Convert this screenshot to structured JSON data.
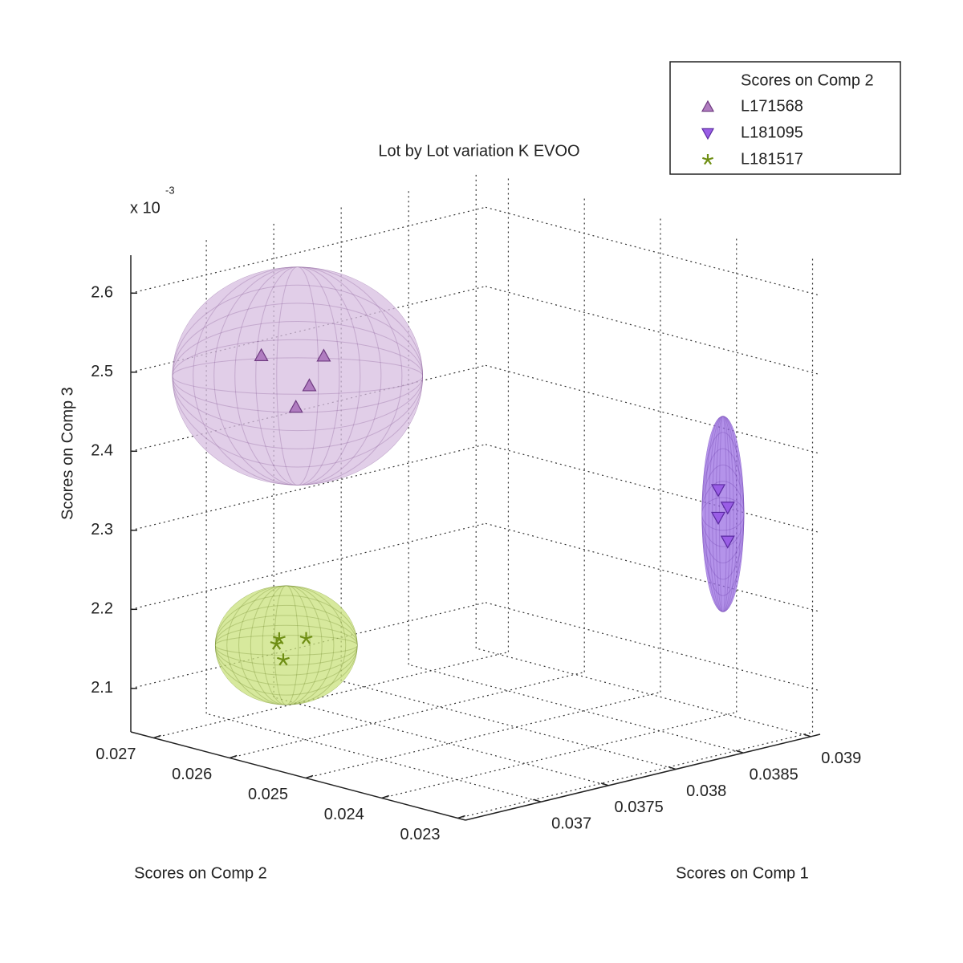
{
  "chart_data": {
    "type": "scatter3d",
    "title": "Lot by Lot variation K EVOO",
    "x_label": "Scores on Comp 1",
    "y_label": "Scores on Comp 2",
    "z_label": "Scores on Comp 3",
    "z_multiplier": {
      "base": "x 10",
      "exponent": "-3"
    },
    "xlim": [
      0.03644,
      0.03907
    ],
    "ylim": [
      0.0229,
      0.0273
    ],
    "zlim": [
      2.045,
      2.648
    ],
    "xticks": [
      0.037,
      0.0375,
      0.038,
      0.0385,
      0.039
    ],
    "yticks": [
      0.023,
      0.024,
      0.025,
      0.026,
      0.027
    ],
    "zticks": [
      2.1,
      2.2,
      2.3,
      2.4,
      2.5,
      2.6
    ],
    "grid": true,
    "legend": {
      "title": "Scores on Comp 2",
      "location": "northeast"
    },
    "series": [
      {
        "name": "L171568",
        "marker": "triangle-up",
        "color": "#b07cc0",
        "edge": "#6e3a80",
        "ellipsoid": "#d7bde0",
        "x": [
          0.0369,
          0.03725,
          0.0372,
          0.0371
        ],
        "y": [
          0.0264,
          0.0262,
          0.0263,
          0.0263
        ],
        "z": [
          2.525,
          2.515,
          2.477,
          2.454
        ]
      },
      {
        "name": "L181095",
        "marker": "triangle-down",
        "color": "#9a5ee6",
        "edge": "#5a2aa0",
        "ellipsoid": "#9b6fe3",
        "x": [
          0.03854,
          0.03861,
          0.03854,
          0.03861
        ],
        "y": [
          0.0233,
          0.0233,
          0.0233,
          0.0233
        ],
        "z": [
          2.366,
          2.341,
          2.331,
          2.298
        ]
      },
      {
        "name": "L181517",
        "marker": "star",
        "color": "#6f8f14",
        "edge": "#55700c",
        "ellipsoid": "#c9e27c",
        "x": [
          0.03692,
          0.0369,
          0.03712,
          0.03695
        ],
        "y": [
          0.0262,
          0.0262,
          0.0262,
          0.0262
        ],
        "z": [
          2.171,
          2.165,
          2.163,
          2.143
        ]
      }
    ]
  }
}
